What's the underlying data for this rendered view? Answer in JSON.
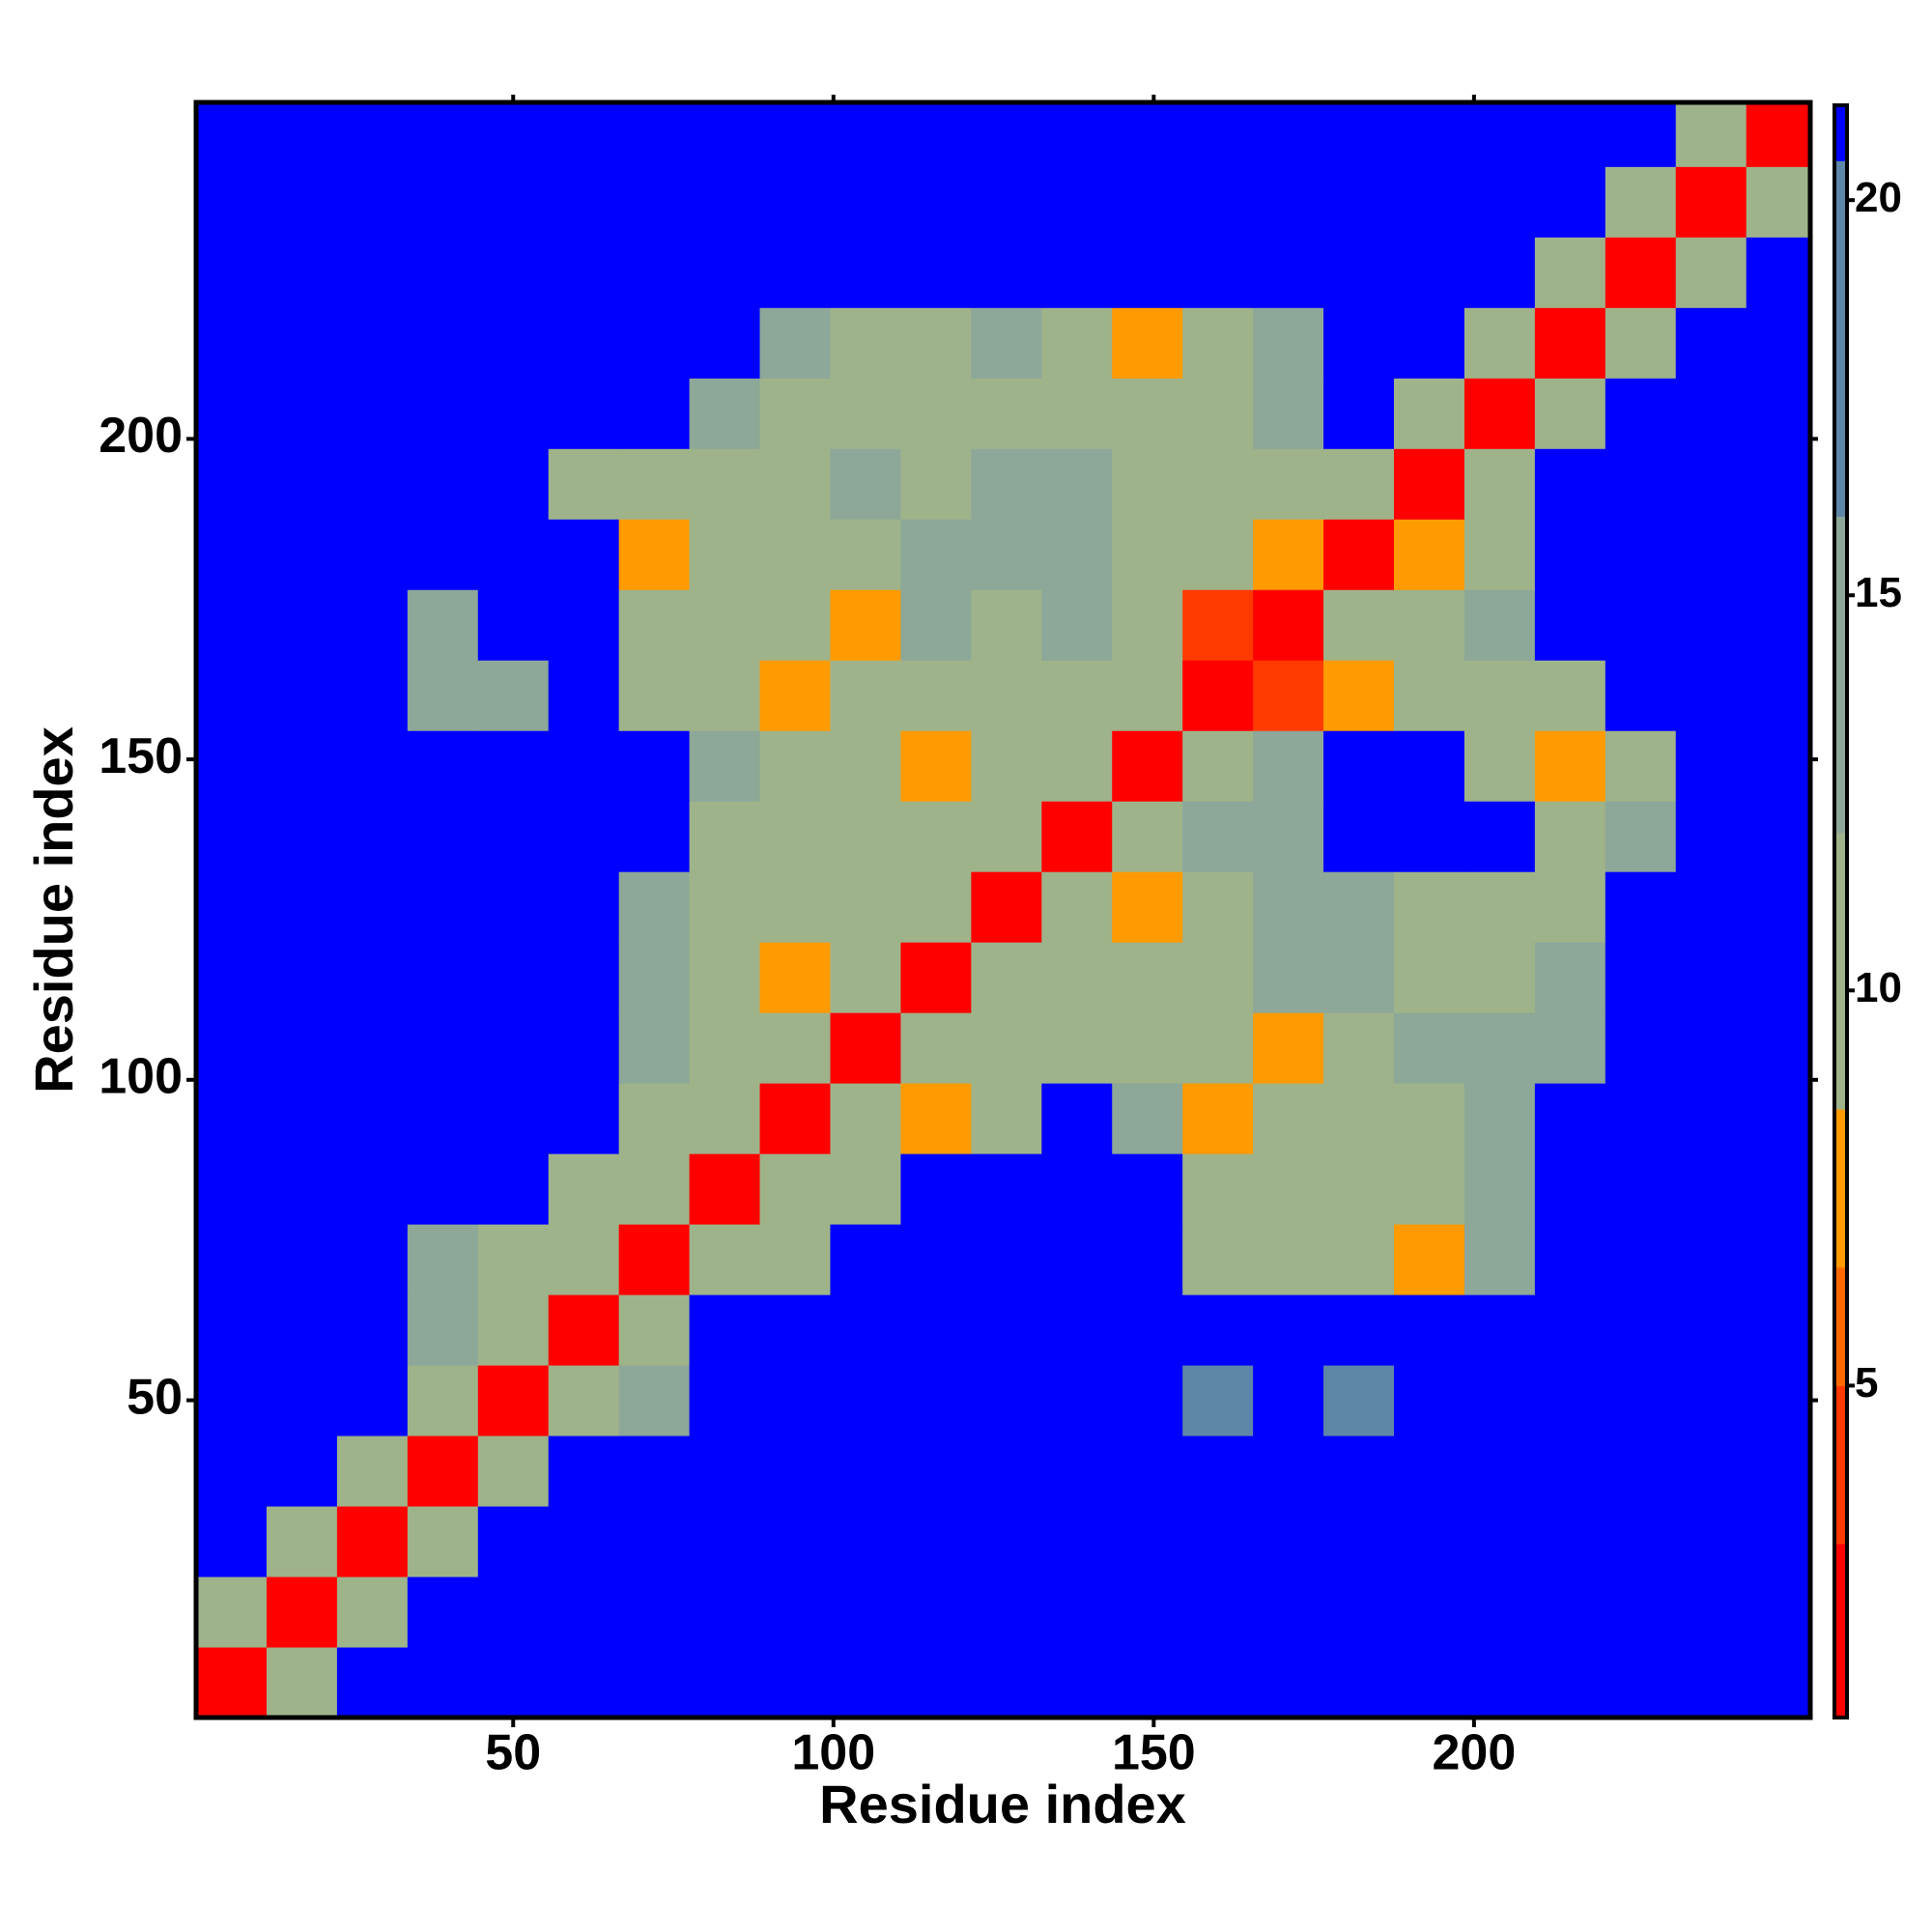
{
  "chart_data": {
    "type": "heatmap",
    "x_label": "Residue index",
    "y_label": "Residue index",
    "x": [
      6,
      17,
      28,
      39,
      50,
      61,
      72,
      83,
      94,
      105,
      116,
      127,
      138,
      149,
      160,
      171,
      182,
      193,
      204,
      215,
      226,
      237,
      248
    ],
    "y": [
      6,
      17,
      28,
      39,
      50,
      61,
      72,
      83,
      94,
      105,
      116,
      127,
      138,
      149,
      160,
      171,
      182,
      193,
      204,
      215,
      226,
      237,
      248
    ],
    "z": [
      [
        3,
        10,
        21,
        21,
        21,
        21,
        21,
        21,
        21,
        21,
        21,
        21,
        21,
        21,
        21,
        21,
        21,
        21,
        21,
        21,
        21,
        21,
        21
      ],
      [
        10,
        3,
        10,
        21,
        21,
        21,
        21,
        21,
        21,
        21,
        21,
        21,
        21,
        21,
        21,
        21,
        21,
        21,
        21,
        21,
        21,
        21,
        21
      ],
      [
        21,
        10,
        3,
        12,
        21,
        21,
        21,
        21,
        21,
        21,
        21,
        21,
        21,
        21,
        21,
        21,
        21,
        21,
        21,
        21,
        21,
        21,
        21
      ],
      [
        21,
        21,
        12,
        3,
        12,
        21,
        21,
        21,
        21,
        21,
        21,
        21,
        21,
        21,
        21,
        21,
        21,
        21,
        21,
        21,
        21,
        21,
        21
      ],
      [
        21,
        21,
        21,
        11,
        3,
        10,
        13,
        21,
        21,
        21,
        21,
        21,
        21,
        21,
        18,
        21,
        18,
        21,
        21,
        21,
        21,
        21,
        21
      ],
      [
        21,
        21,
        21,
        13,
        10,
        3,
        10,
        21,
        21,
        21,
        21,
        21,
        21,
        21,
        21,
        21,
        21,
        21,
        21,
        21,
        21,
        21,
        21
      ],
      [
        21,
        21,
        21,
        14,
        12,
        10,
        3,
        10,
        12,
        21,
        21,
        21,
        21,
        21,
        12,
        11,
        11,
        7,
        13,
        21,
        21,
        21,
        21
      ],
      [
        21,
        21,
        21,
        21,
        21,
        12,
        10,
        3,
        10,
        12,
        21,
        21,
        21,
        21,
        11,
        12,
        11,
        11,
        14,
        21,
        21,
        21,
        21
      ],
      [
        21,
        21,
        21,
        21,
        21,
        21,
        12,
        11,
        3,
        9,
        7,
        12,
        21,
        13,
        7,
        11,
        12,
        11,
        13,
        21,
        21,
        21,
        21
      ],
      [
        21,
        21,
        21,
        21,
        21,
        21,
        13,
        11,
        10,
        3,
        9,
        11,
        12,
        11,
        12,
        7,
        11,
        13,
        13,
        14,
        21,
        21,
        21
      ],
      [
        21,
        21,
        21,
        21,
        21,
        21,
        13,
        11,
        7,
        10,
        3,
        9,
        11,
        11,
        12,
        13,
        14,
        12,
        12,
        13,
        21,
        21,
        21
      ],
      [
        21,
        21,
        21,
        21,
        21,
        21,
        14,
        12,
        11,
        11,
        10,
        3,
        9,
        7,
        12,
        14,
        15,
        12,
        11,
        12,
        21,
        21,
        21
      ],
      [
        21,
        21,
        21,
        21,
        21,
        21,
        21,
        12,
        11,
        11,
        10,
        9,
        3,
        10,
        13,
        16,
        21,
        21,
        21,
        12,
        14,
        21,
        21
      ],
      [
        21,
        21,
        21,
        21,
        21,
        21,
        21,
        13,
        11,
        11,
        7,
        11,
        10,
        3,
        10,
        14,
        21,
        21,
        12,
        7,
        12,
        21,
        21
      ],
      [
        21,
        21,
        21,
        15,
        16,
        21,
        12,
        11,
        7,
        12,
        11,
        12,
        11,
        10,
        3,
        5,
        7,
        11,
        12,
        12,
        21,
        21,
        21
      ],
      [
        21,
        21,
        21,
        16,
        21,
        21,
        11,
        12,
        11,
        7,
        14,
        12,
        13,
        11,
        5,
        3,
        10,
        11,
        13,
        21,
        21,
        21,
        21
      ],
      [
        21,
        21,
        21,
        21,
        21,
        21,
        7,
        12,
        11,
        12,
        14,
        16,
        14,
        11,
        10,
        7,
        3,
        7,
        12,
        21,
        21,
        21,
        21
      ],
      [
        21,
        21,
        21,
        21,
        21,
        12,
        10,
        11,
        12,
        13,
        12,
        14,
        13,
        12,
        11,
        10,
        10,
        3,
        10,
        21,
        21,
        21,
        21
      ],
      [
        21,
        21,
        21,
        21,
        21,
        21,
        21,
        13,
        11,
        12,
        11,
        12,
        11,
        12,
        12,
        13,
        21,
        10,
        3,
        10,
        21,
        21,
        21
      ],
      [
        21,
        21,
        21,
        21,
        21,
        21,
        21,
        21,
        13,
        12,
        12,
        13,
        11,
        7,
        12,
        14,
        21,
        21,
        10,
        3,
        10,
        21,
        21
      ],
      [
        21,
        21,
        21,
        21,
        21,
        21,
        21,
        21,
        21,
        21,
        21,
        21,
        21,
        21,
        21,
        21,
        21,
        21,
        21,
        10,
        3,
        10,
        21
      ],
      [
        21,
        21,
        21,
        21,
        21,
        21,
        21,
        21,
        21,
        21,
        21,
        21,
        21,
        21,
        21,
        21,
        21,
        21,
        21,
        21,
        11,
        3,
        10
      ],
      [
        21,
        21,
        21,
        21,
        21,
        21,
        21,
        21,
        21,
        21,
        21,
        21,
        21,
        21,
        21,
        21,
        21,
        21,
        21,
        21,
        21,
        11,
        3
      ]
    ],
    "xlim": [
      0.5,
      252.5
    ],
    "ylim": [
      0.5,
      252.5
    ],
    "xticks": [
      50,
      100,
      150,
      200
    ],
    "yticks": [
      50,
      100,
      150,
      200
    ],
    "color_bins": [
      0.8,
      3,
      5,
      6.5,
      8.5,
      12,
      16,
      20.5,
      21.2
    ],
    "colors": [
      "#ff0000",
      "#ff3a00",
      "#ff6a00",
      "#ff9a00",
      "#9fb38a",
      "#8da798",
      "#5d86a8",
      "#0000ff"
    ],
    "colorbar_ticks": [
      5,
      10,
      15,
      20
    ]
  }
}
